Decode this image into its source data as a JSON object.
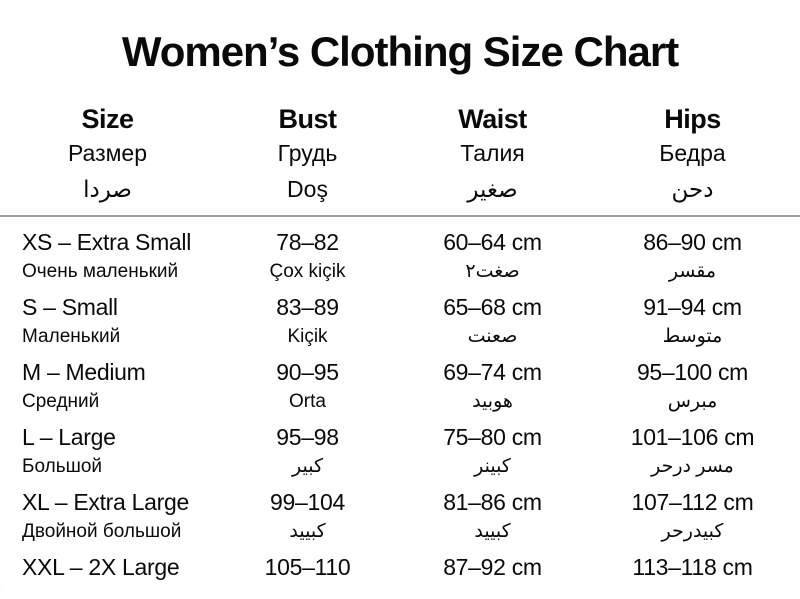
{
  "title": "Women’s Clothing Size Chart",
  "colors": {
    "text": "#0a0a0a",
    "divider": "#a0a0a0",
    "background": "#ffffff"
  },
  "columns": [
    {
      "en": "Size",
      "ru": "Размер",
      "ar": "صردا"
    },
    {
      "en": "Bust",
      "ru": "Грудь",
      "ar": "Doş"
    },
    {
      "en": "Waist",
      "ru": "Талия",
      "ar": "صغير"
    },
    {
      "en": "Hips",
      "ru": "Бедра",
      "ar": "دحن"
    }
  ],
  "rows": [
    {
      "size": "XS – Extra Small",
      "size_sub": "Очень маленький",
      "bust": "78–82",
      "bust_sub": "Çox kiçik",
      "waist": "60–64 cm",
      "waist_sub": "صغت٢",
      "hips": "86–90 cm",
      "hips_sub": "مقسر"
    },
    {
      "size": "S – Small",
      "size_sub": "Маленький",
      "bust": "83–89",
      "bust_sub": "Kiçik",
      "waist": "65–68 cm",
      "waist_sub": "صعنت",
      "hips": "91–94 cm",
      "hips_sub": "متوسط"
    },
    {
      "size": "M – Medium",
      "size_sub": "Средний",
      "bust": "90–95",
      "bust_sub": "Orta",
      "waist": "69–74 cm",
      "waist_sub": "هوبيد",
      "hips": "95–100 cm",
      "hips_sub": "مبرس"
    },
    {
      "size": "L – Large",
      "size_sub": "Большой",
      "bust": "95–98",
      "bust_sub": "كبير",
      "waist": "75–80 cm",
      "waist_sub": "كبينر",
      "hips": "101–106 cm",
      "hips_sub": "مسر درحر"
    },
    {
      "size": "XL – Extra Large",
      "size_sub": "Двойной большой",
      "bust": "99–104",
      "bust_sub": "كبييد",
      "waist": "81–86 cm",
      "waist_sub": "كبييد",
      "hips": "107–112 cm",
      "hips_sub": "كبيدرحر"
    },
    {
      "size": "XXL – 2X Large",
      "size_sub": "",
      "bust": "105–110",
      "bust_sub": "",
      "waist": "87–92 cm",
      "waist_sub": "",
      "hips": "113–118 cm",
      "hips_sub": ""
    }
  ]
}
